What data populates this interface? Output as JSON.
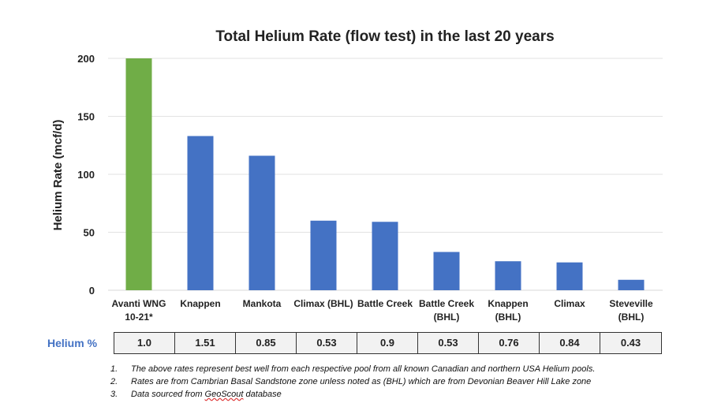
{
  "chart_data": {
    "type": "bar",
    "title": "Total Helium Rate (flow test) in the last 20 years",
    "xlabel": "",
    "ylabel": "Helium Rate (mcf/d)",
    "ylim": [
      0,
      200
    ],
    "yticks": [
      0,
      50,
      100,
      150,
      200
    ],
    "grid": true,
    "categories": [
      [
        "Avanti WNG",
        "10-21*"
      ],
      [
        "Knappen"
      ],
      [
        "Mankota"
      ],
      [
        "Climax (BHL)"
      ],
      [
        "Battle Creek"
      ],
      [
        "Battle Creek",
        "(BHL)"
      ],
      [
        "Knappen",
        "(BHL)"
      ],
      [
        "Climax"
      ],
      [
        "Steveville",
        "(BHL)"
      ]
    ],
    "values": [
      200,
      133,
      116,
      60,
      59,
      33,
      25,
      24,
      9
    ],
    "colors": {
      "highlight": "#70ad47",
      "bar": "#4472c4"
    },
    "highlight_index": 0
  },
  "helium_table": {
    "label": "Helium %",
    "values": [
      "1.0",
      "1.51",
      "0.85",
      "0.53",
      "0.9",
      "0.53",
      "0.76",
      "0.84",
      "0.43"
    ]
  },
  "notes": [
    {
      "num": "1.",
      "text": "The above rates represent best well from each respective pool from all known Canadian and northern USA Helium pools."
    },
    {
      "num": "2.",
      "text": "Rates are from Cambrian Basal Sandstone zone unless noted as (BHL) which are from Devonian Beaver Hill Lake zone"
    },
    {
      "num": "3.",
      "text_before": "Data sourced from ",
      "text_underlined": "GeoScout",
      "text_after": " database"
    }
  ]
}
